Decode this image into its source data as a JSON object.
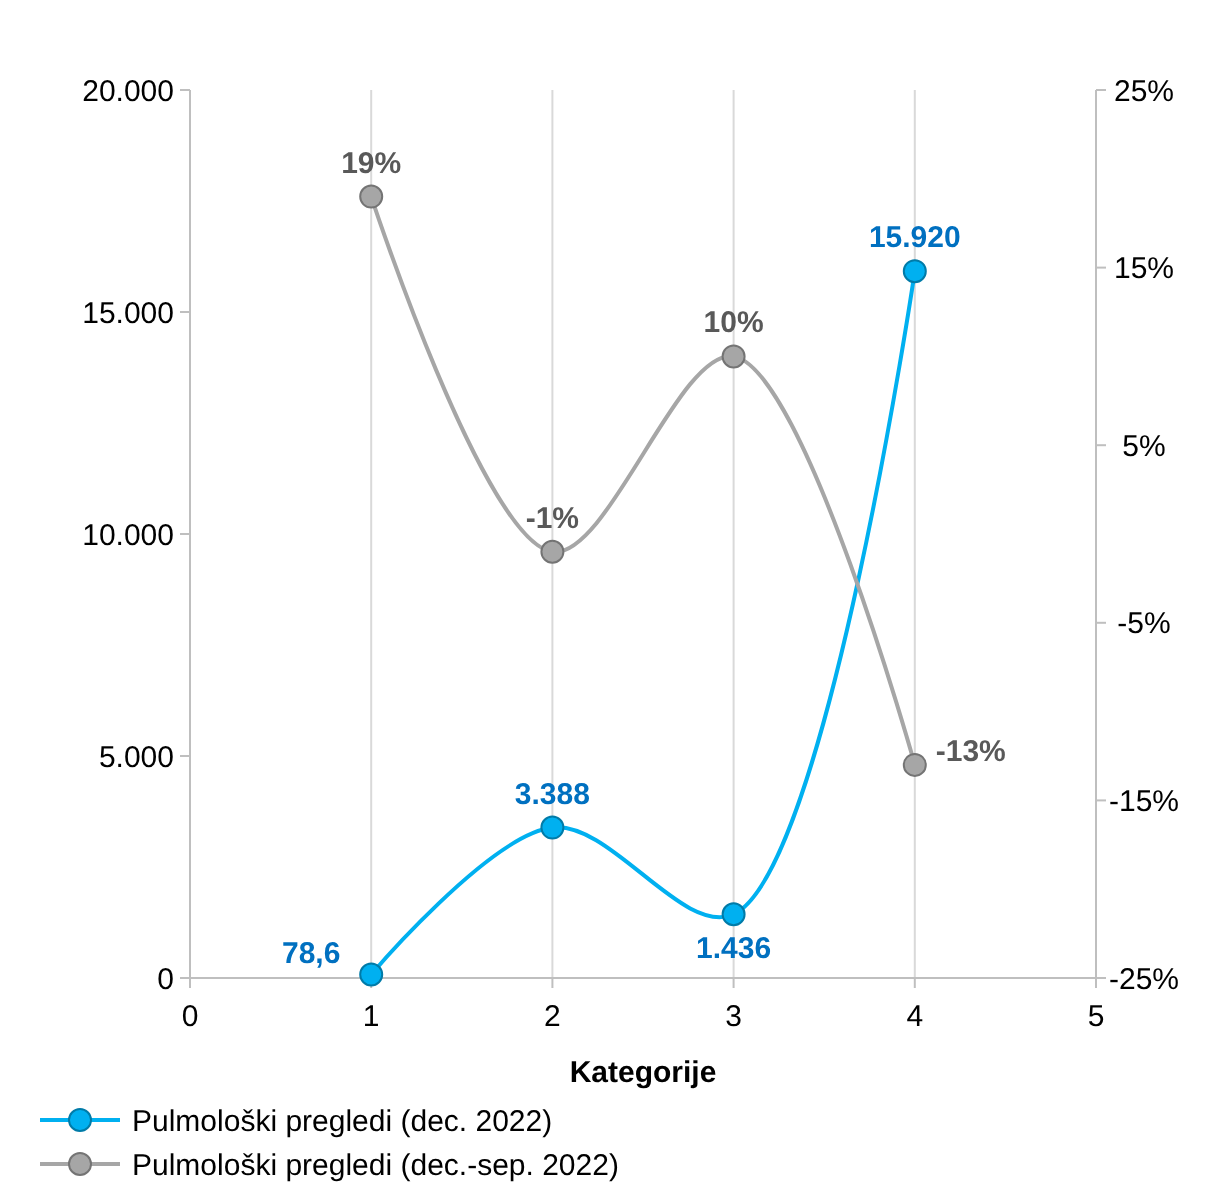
{
  "chart_data": {
    "type": "line",
    "xlabel": "Kategorije",
    "x": [
      1,
      2,
      3,
      4
    ],
    "xlim": [
      0,
      5
    ],
    "xticks": [
      0,
      1,
      2,
      3,
      4,
      5
    ],
    "ylim": [
      0,
      20000
    ],
    "yticks": [
      {
        "value": 0,
        "label": "0"
      },
      {
        "value": 5000,
        "label": "5.000"
      },
      {
        "value": 10000,
        "label": "10.000"
      },
      {
        "value": 15000,
        "label": "15.000"
      },
      {
        "value": 20000,
        "label": "20.000"
      }
    ],
    "y2lim": [
      -25,
      25
    ],
    "y2ticks": [
      {
        "value": -25,
        "label": "-25%"
      },
      {
        "value": -15,
        "label": "-15%"
      },
      {
        "value": -5,
        "label": "-5%"
      },
      {
        "value": 5,
        "label": "5%"
      },
      {
        "value": 15,
        "label": "15%"
      },
      {
        "value": 25,
        "label": "25%"
      }
    ],
    "grid": "x",
    "legend": "bottom",
    "marker": "circle",
    "line_style": "solid",
    "series": [
      {
        "name": "Pulmološki pregledi (dec. 2022)",
        "color": "#00b0f0",
        "values": [
          78.6,
          3388,
          1436,
          15920
        ],
        "value_labels": [
          "78,6",
          "3.388",
          "1.436",
          "15.920"
        ]
      },
      {
        "name": "Pulmološki pregledi (dec.-sep. 2022)",
        "color": "#a6a6a6",
        "axis": "y2",
        "values": [
          19,
          -1,
          10,
          -13
        ],
        "value_labels": [
          "19%",
          "-1%",
          "10%",
          "-13%"
        ]
      }
    ]
  }
}
